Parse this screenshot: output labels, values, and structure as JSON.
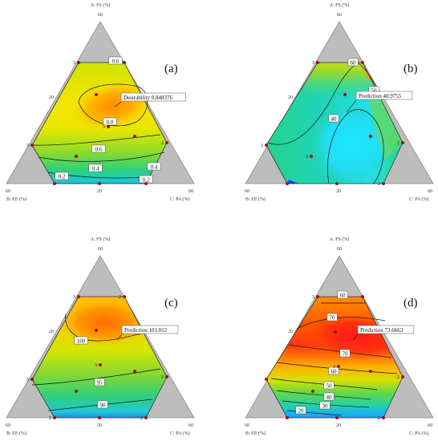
{
  "chart_data": [
    {
      "type": "ternary-contour",
      "panel_label": "(a)",
      "axes": {
        "a": "A: FS (%)",
        "b": "B: EE (%)",
        "c": "C: PA (%)"
      },
      "ticks": {
        "top": "60",
        "left": "60",
        "right": "60",
        "left_mid": "20",
        "bottom_mid": "20"
      },
      "response": "Desirability",
      "contour_labels": [
        "0.6",
        "0.8",
        "0.6",
        "0.4",
        "0.4",
        "0.2",
        "0.2"
      ],
      "annotation": {
        "name": "Desirability",
        "value": "0.848376"
      },
      "design_point_counts": [
        "3",
        "3",
        "3",
        "2"
      ],
      "colormap": "blue-cyan-green-yellow-orange-red"
    },
    {
      "type": "ternary-contour",
      "panel_label": "(b)",
      "axes": {
        "a": "A: FS (%)",
        "b": "B: EE (%)",
        "c": "C: PA (%)"
      },
      "ticks": {
        "top": "60",
        "left": "60",
        "right": "60",
        "left_mid": "20",
        "bottom_mid": "20"
      },
      "response": "Prediction",
      "contour_labels": [
        "60",
        "50",
        "40"
      ],
      "annotation": {
        "name": "Prediction",
        "value": "40.9755"
      },
      "design_point_counts": [
        "3",
        "3",
        "3",
        "2",
        "2"
      ],
      "colormap": "blue-cyan-green-yellow-orange-red"
    },
    {
      "type": "ternary-contour",
      "panel_label": "(c)",
      "axes": {
        "a": "A: FS (%)",
        "b": "B: EE (%)",
        "c": "C: PA (%)"
      },
      "ticks": {
        "top": "60",
        "left": "60",
        "right": "60",
        "left_mid": "20",
        "bottom_mid": "20"
      },
      "response": "Prediction",
      "contour_labels": [
        "100",
        "95",
        "90"
      ],
      "annotation": {
        "name": "Prediction",
        "value": "101.012"
      },
      "design_point_counts": [
        "3",
        "2",
        "3",
        "3",
        "2",
        "2",
        "2"
      ],
      "colormap": "blue-cyan-green-yellow-orange-red"
    },
    {
      "type": "ternary-contour",
      "panel_label": "(d)",
      "axes": {
        "a": "A: FS (%)",
        "b": "B: EE (%)",
        "c": "C: PA (%)"
      },
      "ticks": {
        "top": "60",
        "left": "60",
        "right": "60",
        "left_mid": "20",
        "bottom_mid": "20"
      },
      "response": "Prediction",
      "contour_labels": [
        "60",
        "70",
        "70",
        "60",
        "50",
        "40",
        "30",
        "20"
      ],
      "annotation": {
        "name": "Prediction",
        "value": "73.6663"
      },
      "design_point_counts": [
        "3",
        "3",
        "2",
        "2"
      ],
      "colormap": "blue-cyan-green-yellow-orange-red"
    }
  ]
}
